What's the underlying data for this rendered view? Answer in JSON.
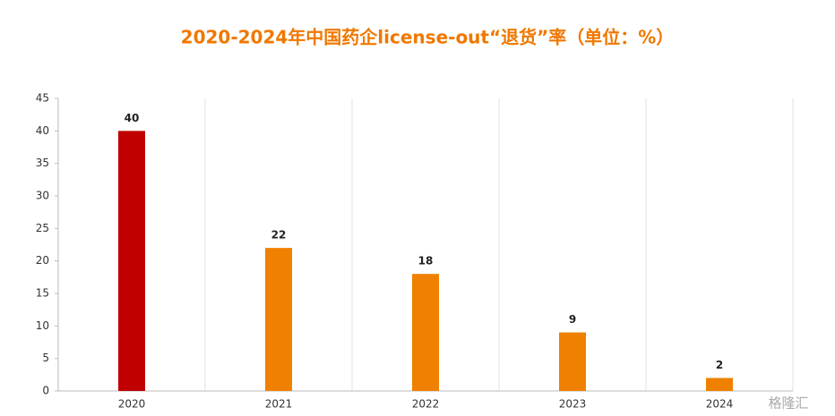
{
  "chart_data": {
    "type": "bar",
    "title": "2020-2024年中国药企license-out“退货”率（单位：%）",
    "categories": [
      "2020",
      "2021",
      "2022",
      "2023",
      "2024"
    ],
    "values": [
      40,
      22,
      18,
      9,
      2
    ],
    "colors": [
      "#c00000",
      "#f08000",
      "#f08000",
      "#f08000",
      "#f08000"
    ],
    "ylim": [
      0,
      45
    ],
    "yticks": [
      0,
      5,
      10,
      15,
      20,
      25,
      30,
      35,
      40,
      45
    ],
    "watermark": "格隆汇"
  }
}
